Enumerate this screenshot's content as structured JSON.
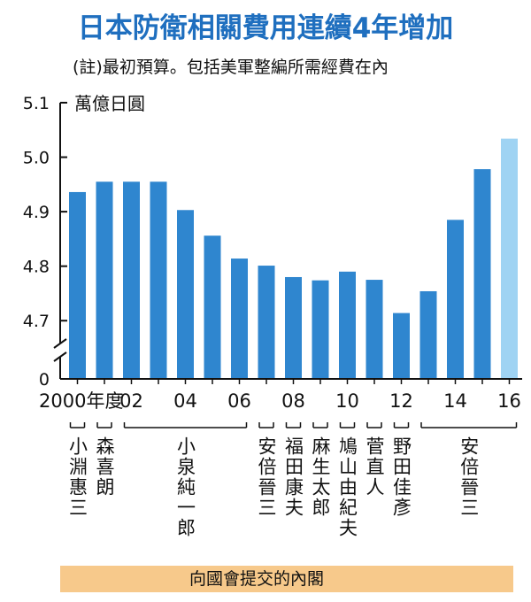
{
  "chart_data": {
    "type": "bar",
    "title": "日本防衛相關費用連續4年增加",
    "subtitle": "(註)最初預算。包括美軍整編所需經費在內",
    "ylabel": "萬億日圓",
    "xlabel": "",
    "x_end_label": "年度",
    "ylim": [
      4.65,
      5.1
    ],
    "y_ticks": [
      "5.1",
      "5.0",
      "4.9",
      "4.8",
      "4.7",
      "0"
    ],
    "y_break": true,
    "x_tick_labels": [
      "2000",
      "02",
      "04",
      "06",
      "08",
      "10",
      "12",
      "14",
      "16"
    ],
    "categories": [
      "2000",
      "2001",
      "2002",
      "2003",
      "2004",
      "2005",
      "2006",
      "2007",
      "2008",
      "2009",
      "2010",
      "2011",
      "2012",
      "2013",
      "2014",
      "2015",
      "2016"
    ],
    "values": [
      4.936,
      4.955,
      4.955,
      4.955,
      4.903,
      4.856,
      4.814,
      4.801,
      4.78,
      4.774,
      4.79,
      4.775,
      4.714,
      4.754,
      4.885,
      4.978,
      5.034
    ],
    "highlight_index": 16,
    "grid": false
  },
  "cabinets": {
    "caption": "向國會提交的內閣",
    "names": [
      "小淵惠三",
      "森喜朗",
      "小泉純一郎",
      "安倍晉三",
      "福田康夫",
      "麻生太郎",
      "鳩山由紀夫",
      "菅直人",
      "野田佳彥",
      "安倍晉三"
    ]
  },
  "colors": {
    "title": "#1f6fbf",
    "bar": "#2f86cf",
    "bar_highlight": "#9fd3f3",
    "caption_band": "#f7c98b",
    "background": "#ffffff",
    "text": "#111111"
  }
}
